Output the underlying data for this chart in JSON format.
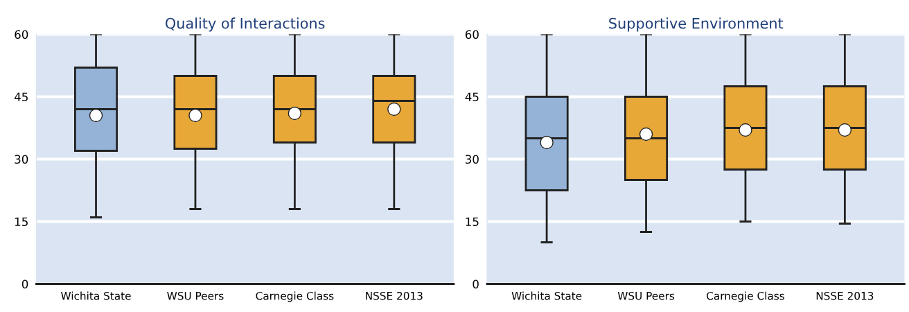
{
  "chart_data": [
    {
      "type": "box",
      "title": "Quality of Interactions",
      "categories": [
        "Wichita State",
        "WSU Peers",
        "Carnegie Class",
        "NSSE 2013"
      ],
      "boxes": [
        {
          "low": 16,
          "q1": 32,
          "median": 42,
          "q3": 52,
          "high": 60,
          "mean": 40.5
        },
        {
          "low": 18,
          "q1": 32.5,
          "median": 42,
          "q3": 50,
          "high": 60,
          "mean": 40.5
        },
        {
          "low": 18,
          "q1": 34,
          "median": 42,
          "q3": 50,
          "high": 60,
          "mean": 41
        },
        {
          "low": 18,
          "q1": 34,
          "median": 44,
          "q3": 50,
          "high": 60,
          "mean": 42
        }
      ],
      "colors": [
        "#95b3d7",
        "#e8a838",
        "#e8a838",
        "#e8a838"
      ],
      "ylim": [
        0,
        60
      ],
      "yticks": [
        0,
        15,
        30,
        45,
        60
      ],
      "grid": "y"
    },
    {
      "type": "box",
      "title": "Supportive Environment",
      "categories": [
        "Wichita State",
        "WSU Peers",
        "Carnegie Class",
        "NSSE 2013"
      ],
      "boxes": [
        {
          "low": 10,
          "q1": 22.5,
          "median": 35,
          "q3": 45,
          "high": 60,
          "mean": 34
        },
        {
          "low": 12.5,
          "q1": 25,
          "median": 35,
          "q3": 45,
          "high": 60,
          "mean": 36
        },
        {
          "low": 15,
          "q1": 27.5,
          "median": 37.5,
          "q3": 47.5,
          "high": 60,
          "mean": 37
        },
        {
          "low": 14.5,
          "q1": 27.5,
          "median": 37.5,
          "q3": 47.5,
          "high": 60,
          "mean": 37
        }
      ],
      "colors": [
        "#95b3d7",
        "#e8a838",
        "#e8a838",
        "#e8a838"
      ],
      "ylim": [
        0,
        60
      ],
      "yticks": [
        0,
        15,
        30,
        45,
        60
      ],
      "grid": "y"
    }
  ]
}
